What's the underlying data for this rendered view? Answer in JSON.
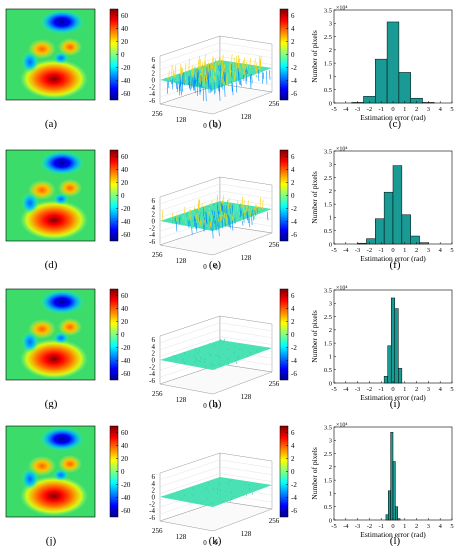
{
  "palette": {
    "jet": [
      "#00008f",
      "#0000ff",
      "#0080ff",
      "#00ffff",
      "#80ff80",
      "#ffff00",
      "#ff8000",
      "#ff0000",
      "#800000"
    ],
    "bar_fill": "#1a9a94",
    "bar_stroke": "#000000"
  },
  "phase_colorbar": {
    "ticks": [
      60,
      40,
      20,
      0,
      -20,
      -40,
      -60
    ],
    "range": [
      -70,
      70
    ]
  },
  "error_colorbar": {
    "ticks": [
      6,
      4,
      2,
      0,
      -2,
      -4,
      -6
    ],
    "range": [
      -7,
      7
    ]
  },
  "surface_axes": {
    "z_ticks": [
      6,
      4,
      2,
      0,
      -2,
      -4,
      -6
    ],
    "corner_labels": [
      "256",
      "128",
      "0",
      "0",
      "128",
      "256"
    ]
  },
  "rows": [
    {
      "captions": [
        "(a)",
        "(b)",
        "(c)"
      ],
      "noise": 2.2,
      "lines": 1.0
    },
    {
      "captions": [
        "(d)",
        "(e)",
        "(f)"
      ],
      "noise": 1.8,
      "lines": 0.85
    },
    {
      "captions": [
        "(g)",
        "(h)",
        "(i)"
      ],
      "noise": 0.4,
      "lines": 0.25
    },
    {
      "captions": [
        "(j)",
        "(k)",
        "(l)"
      ],
      "noise": 0.3,
      "lines": 0.2
    }
  ],
  "chart_data": [
    {
      "type": "bar",
      "panel": "(c)",
      "xlabel": "Estimation error (rad)",
      "ylabel": "Number of pixels",
      "exponent_label": "×10⁴",
      "xlim": [
        -5,
        5
      ],
      "ylim": [
        0,
        3.5
      ],
      "xticks": [
        -5,
        -4,
        -3,
        -2,
        -1,
        0,
        1,
        2,
        3,
        4,
        5
      ],
      "yticks": [
        0,
        0.5,
        1,
        1.5,
        2,
        2.5,
        3,
        3.5
      ],
      "bin_edges": [
        -3.5,
        -2.5,
        -1.5,
        -0.5,
        0.5,
        1.5,
        2.5,
        3.5
      ],
      "values": [
        0.02,
        0.25,
        1.65,
        3.05,
        1.15,
        0.18,
        0.02
      ]
    },
    {
      "type": "bar",
      "panel": "(f)",
      "xlabel": "Estimation error (rad)",
      "ylabel": "Number of pixels",
      "exponent_label": "×10⁴",
      "xlim": [
        -5,
        5
      ],
      "ylim": [
        0,
        3.5
      ],
      "xticks": [
        -5,
        -4,
        -3,
        -2,
        -1,
        0,
        1,
        2,
        3,
        4,
        5
      ],
      "yticks": [
        0,
        0.5,
        1,
        1.5,
        2,
        2.5,
        3,
        3.5
      ],
      "bin_edges": [
        -3,
        -2.25,
        -1.5,
        -0.75,
        0,
        0.75,
        1.5,
        2.25,
        3
      ],
      "values": [
        0.03,
        0.2,
        0.95,
        1.95,
        2.95,
        1.1,
        0.3,
        0.05
      ]
    },
    {
      "type": "bar",
      "panel": "(i)",
      "xlabel": "Estimation error (rad)",
      "ylabel": "Number of pixels",
      "exponent_label": "×10⁴",
      "xlim": [
        -5,
        5
      ],
      "ylim": [
        0,
        3.5
      ],
      "xticks": [
        -5,
        -4,
        -3,
        -2,
        -1,
        0,
        1,
        2,
        3,
        4,
        5
      ],
      "yticks": [
        0,
        0.5,
        1,
        1.5,
        2,
        2.5,
        3,
        3.5
      ],
      "bin_edges": [
        -0.75,
        -0.45,
        -0.15,
        0.15,
        0.45,
        0.75
      ],
      "values": [
        0.25,
        1.4,
        3.2,
        2.8,
        0.55
      ]
    },
    {
      "type": "bar",
      "panel": "(l)",
      "xlabel": "Estimation error (rad)",
      "ylabel": "Number of pixels",
      "exponent_label": "×10⁴",
      "xlim": [
        -5,
        5
      ],
      "ylim": [
        0,
        3.5
      ],
      "xticks": [
        -5,
        -4,
        -3,
        -2,
        -1,
        0,
        1,
        2,
        3,
        4,
        5
      ],
      "yticks": [
        0,
        0.5,
        1,
        1.5,
        2,
        2.5,
        3,
        3.5
      ],
      "bin_edges": [
        -0.6,
        -0.4,
        -0.2,
        0,
        0.2,
        0.4,
        0.6
      ],
      "values": [
        0.2,
        1.1,
        3.3,
        2.2,
        0.5,
        0.05
      ]
    }
  ]
}
